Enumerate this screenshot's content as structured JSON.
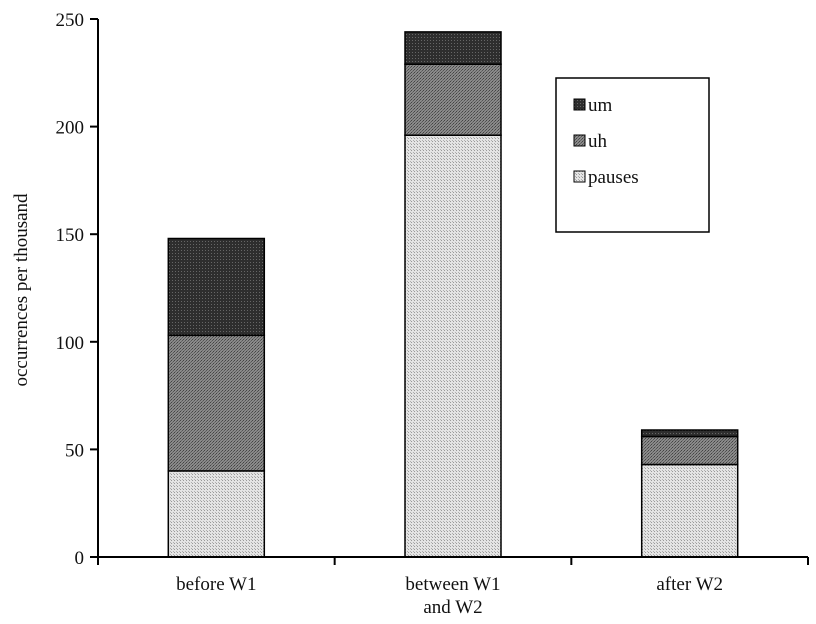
{
  "chart_data": {
    "type": "bar",
    "stacked": true,
    "categories": [
      [
        "before W1"
      ],
      [
        "between W1",
        "and W2"
      ],
      [
        "after W2"
      ]
    ],
    "series": [
      {
        "name": "pauses",
        "values": [
          40,
          196,
          43
        ],
        "color": "#d9d9d9"
      },
      {
        "name": "uh",
        "values": [
          63,
          33,
          13
        ],
        "color": "#7f7f7f"
      },
      {
        "name": "um",
        "values": [
          45,
          15,
          3
        ],
        "color": "#3a3a3a"
      }
    ],
    "legend_order": [
      "um",
      "uh",
      "pauses"
    ],
    "ylabel": "occurrences per thousand",
    "xlabel": "",
    "title": "",
    "ylim": [
      0,
      250
    ],
    "yticks": [
      0,
      50,
      100,
      150,
      200,
      250
    ],
    "legend_position": "top-right",
    "grid": false
  }
}
